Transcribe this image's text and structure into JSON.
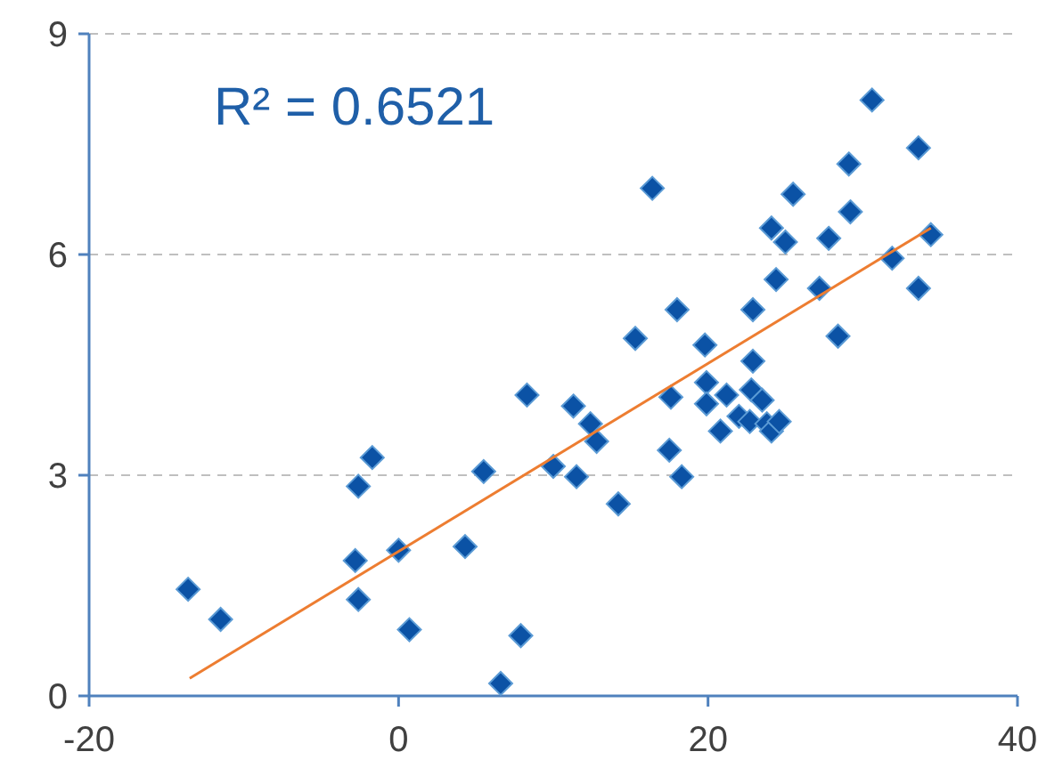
{
  "chart_data": {
    "type": "scatter",
    "annotations": [
      "R² = 0.6521"
    ],
    "xlim": [
      -20,
      40
    ],
    "xticks": [
      -20,
      0,
      20,
      40
    ],
    "ylim": [
      0,
      9
    ],
    "yticks": [
      0,
      3,
      6,
      9
    ],
    "grid": "y",
    "series": [
      {
        "color": "#0b52a5",
        "marker": "diamond",
        "x": [
          -13.6,
          -11.5,
          -2.6,
          -2.8,
          -2.6,
          -1.7,
          0,
          0.7,
          4.3,
          5.5,
          6.6,
          7.9,
          8.3,
          10.0,
          11.3,
          11.5,
          12.4,
          12.8,
          14.2,
          15.3,
          16.4,
          17.5,
          17.6,
          18.0,
          18.3,
          19.8,
          19.9,
          19.9,
          20.8,
          21.2,
          22.0,
          22.7,
          22.9,
          22.9,
          22.8,
          23.5,
          23.8,
          24.1,
          24.6,
          24.1,
          24.4,
          25.0,
          25.5,
          27.2,
          27.8,
          28.4,
          29.1,
          29.2,
          30.6,
          31.9,
          33.6,
          33.6,
          34.4
        ],
        "values": [
          1.45,
          1.04,
          1.31,
          1.84,
          2.85,
          3.24,
          1.98,
          0.9,
          2.03,
          3.05,
          0.17,
          0.82,
          4.09,
          3.12,
          3.94,
          2.98,
          3.7,
          3.46,
          2.61,
          4.86,
          6.9,
          3.34,
          4.06,
          5.25,
          2.98,
          4.77,
          4.26,
          3.97,
          3.6,
          4.09,
          3.8,
          3.73,
          5.25,
          4.55,
          4.16,
          4.02,
          3.7,
          3.6,
          3.73,
          6.36,
          5.66,
          6.17,
          6.82,
          5.54,
          6.22,
          4.89,
          7.23,
          6.58,
          8.1,
          5.95,
          7.45,
          5.54,
          6.27
        ]
      },
      {
        "type": "line",
        "color": "#ed7d31",
        "marker": "none",
        "x": [
          -13.5,
          34.4
        ],
        "values": [
          0.24,
          6.36
        ]
      }
    ]
  }
}
